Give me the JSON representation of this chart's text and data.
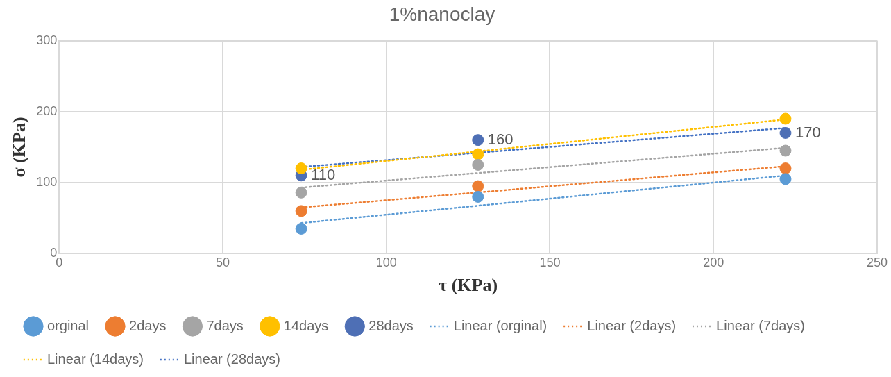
{
  "chart_data": {
    "type": "scatter",
    "title": "1%nanoclay",
    "xlabel": "τ (KPa)",
    "ylabel": "σ (KPa)",
    "xlim": [
      0,
      250
    ],
    "xticks": [
      0,
      50,
      100,
      150,
      200,
      250
    ],
    "ylim": [
      0,
      300
    ],
    "yticks": [
      0,
      100,
      200,
      300
    ],
    "grid": true,
    "legend": "bottom",
    "series": [
      {
        "name": "orginal",
        "marker": "circle",
        "color": "#5b9bd5",
        "x": [
          74,
          128,
          222
        ],
        "values": [
          35,
          80,
          105
        ]
      },
      {
        "name": "2days",
        "marker": "circle",
        "color": "#ed7d31",
        "x": [
          74,
          128,
          222
        ],
        "values": [
          60,
          95,
          120
        ]
      },
      {
        "name": "7days",
        "marker": "circle",
        "color": "#a5a5a5",
        "x": [
          74,
          128,
          222
        ],
        "values": [
          86,
          125,
          145
        ]
      },
      {
        "name": "14days",
        "marker": "circle",
        "color": "#ffc000",
        "x": [
          74,
          128,
          222
        ],
        "values": [
          120,
          140,
          190
        ]
      },
      {
        "name": "28days",
        "marker": "circle",
        "color": "#4e6fb5",
        "x": [
          74,
          128,
          222
        ],
        "values": [
          110,
          160,
          170
        ],
        "value_labels": [
          "110",
          "160",
          "170"
        ]
      },
      {
        "name": "Linear (orginal)",
        "type": "line",
        "marker": "none",
        "line_style": "dotted",
        "color": "#5b9bd5",
        "x": [
          74,
          222
        ],
        "values": [
          43,
          110
        ]
      },
      {
        "name": "Linear (2days)",
        "type": "line",
        "marker": "none",
        "line_style": "dotted",
        "color": "#ed7d31",
        "x": [
          74,
          222
        ],
        "values": [
          65,
          123
        ]
      },
      {
        "name": "Linear (7days)",
        "type": "line",
        "marker": "none",
        "line_style": "dotted",
        "color": "#a5a5a5",
        "x": [
          74,
          222
        ],
        "values": [
          93,
          149
        ]
      },
      {
        "name": "Linear (14days)",
        "type": "line",
        "marker": "none",
        "line_style": "dotted",
        "color": "#ffc000",
        "x": [
          74,
          222
        ],
        "values": [
          118,
          189
        ]
      },
      {
        "name": "Linear (28days)",
        "type": "line",
        "marker": "none",
        "line_style": "dotted",
        "color": "#4472c4",
        "x": [
          74,
          222
        ],
        "values": [
          122,
          177
        ]
      }
    ]
  }
}
